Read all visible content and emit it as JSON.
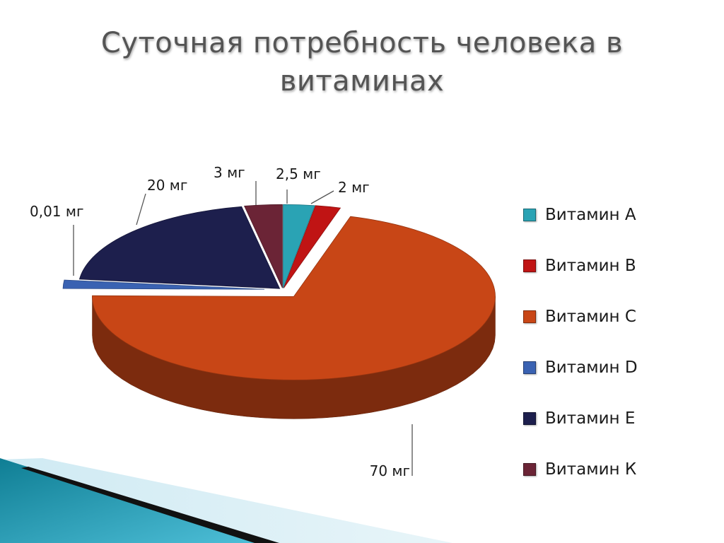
{
  "slide": {
    "title": "Суточная потребность человека в витаминах"
  },
  "chart_data": {
    "type": "pie",
    "title": "Суточная потребность человека в витаминах",
    "categories": [
      "Витамин А",
      "Витамин В",
      "Витамин С",
      "Витамин D",
      "Витамин Е",
      "Витамин К"
    ],
    "values": [
      2.5,
      2,
      70,
      0.01,
      20,
      3
    ],
    "data_labels": [
      "2,5 мг",
      "2 мг",
      "70 мг",
      "0,01 мг",
      "20 мг",
      "3 мг"
    ],
    "unit": "мг",
    "colors": [
      "#2aa3b4",
      "#c01414",
      "#c84616",
      "#3a62b2",
      "#1d1f4d",
      "#6b2436"
    ],
    "legend_position": "right",
    "exploded": true,
    "three_d": true
  }
}
